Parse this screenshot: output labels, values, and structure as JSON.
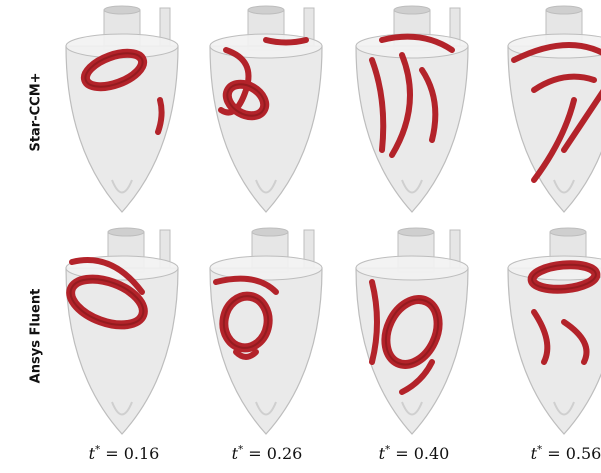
{
  "rows": [
    {
      "label": "Star-CCM+"
    },
    {
      "label": "Ansys Fluent"
    }
  ],
  "columns": [
    {
      "time_symbol": "t",
      "time_sup": "*",
      "time_text": " = 0.16"
    },
    {
      "time_symbol": "t",
      "time_sup": "*",
      "time_text": " = 0.26"
    },
    {
      "time_symbol": "t",
      "time_sup": "*",
      "time_text": " = 0.40"
    },
    {
      "time_symbol": "t",
      "time_sup": "*",
      "time_text": " = 0.56"
    }
  ],
  "colors": {
    "vessel_fill": "#e6e6e6",
    "vessel_stroke": "#bdbdbd",
    "vortex": "#b3232a",
    "vortex_dark": "#7e1519"
  }
}
